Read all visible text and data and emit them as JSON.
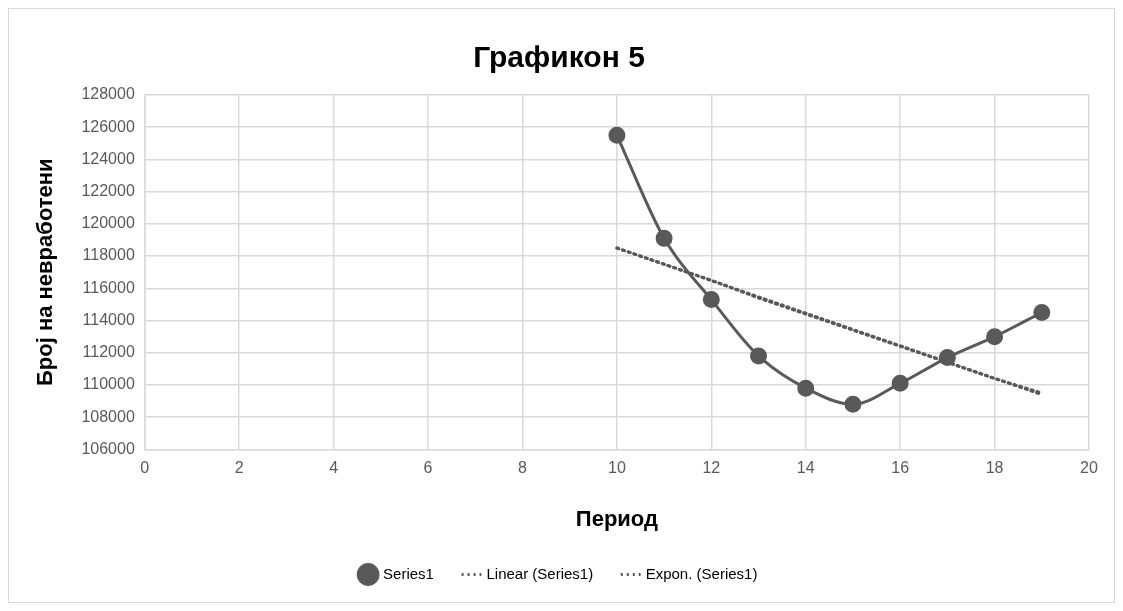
{
  "chart_data": {
    "type": "line",
    "title": "Графикон 5",
    "xlabel": "Период",
    "ylabel": "Број на невработени",
    "xlim": [
      0,
      20
    ],
    "xticks": [
      0,
      2,
      4,
      6,
      8,
      10,
      12,
      14,
      16,
      18,
      20
    ],
    "ylim": [
      106000,
      128000
    ],
    "yticks": [
      106000,
      108000,
      110000,
      112000,
      114000,
      116000,
      118000,
      120000,
      122000,
      124000,
      126000,
      128000
    ],
    "grid": true,
    "legend": "bottom",
    "series": [
      {
        "name": "Series1",
        "color": "#595959",
        "marker": "circle",
        "line_style": "solid",
        "x": [
          10,
          11,
          12,
          13,
          14,
          15,
          16,
          17,
          18,
          19
        ],
        "values": [
          125500,
          119100,
          115300,
          111800,
          109800,
          108800,
          110100,
          111700,
          113000,
          114500
        ]
      },
      {
        "name": "Linear (Series1)",
        "type": "line",
        "color": "#595959",
        "marker": "none",
        "line_style": "dotted",
        "x": [
          10,
          19
        ],
        "values": [
          118500,
          109400
        ]
      },
      {
        "name": "Expon. (Series1)",
        "type": "line",
        "color": "#595959",
        "marker": "none",
        "line_style": "dotted",
        "x": [
          10,
          11,
          12,
          13,
          14,
          15,
          16,
          17,
          18,
          19
        ],
        "values": [
          118500,
          117500,
          116500,
          115400,
          114400,
          113400,
          112400,
          111400,
          110400,
          109500
        ]
      }
    ]
  }
}
